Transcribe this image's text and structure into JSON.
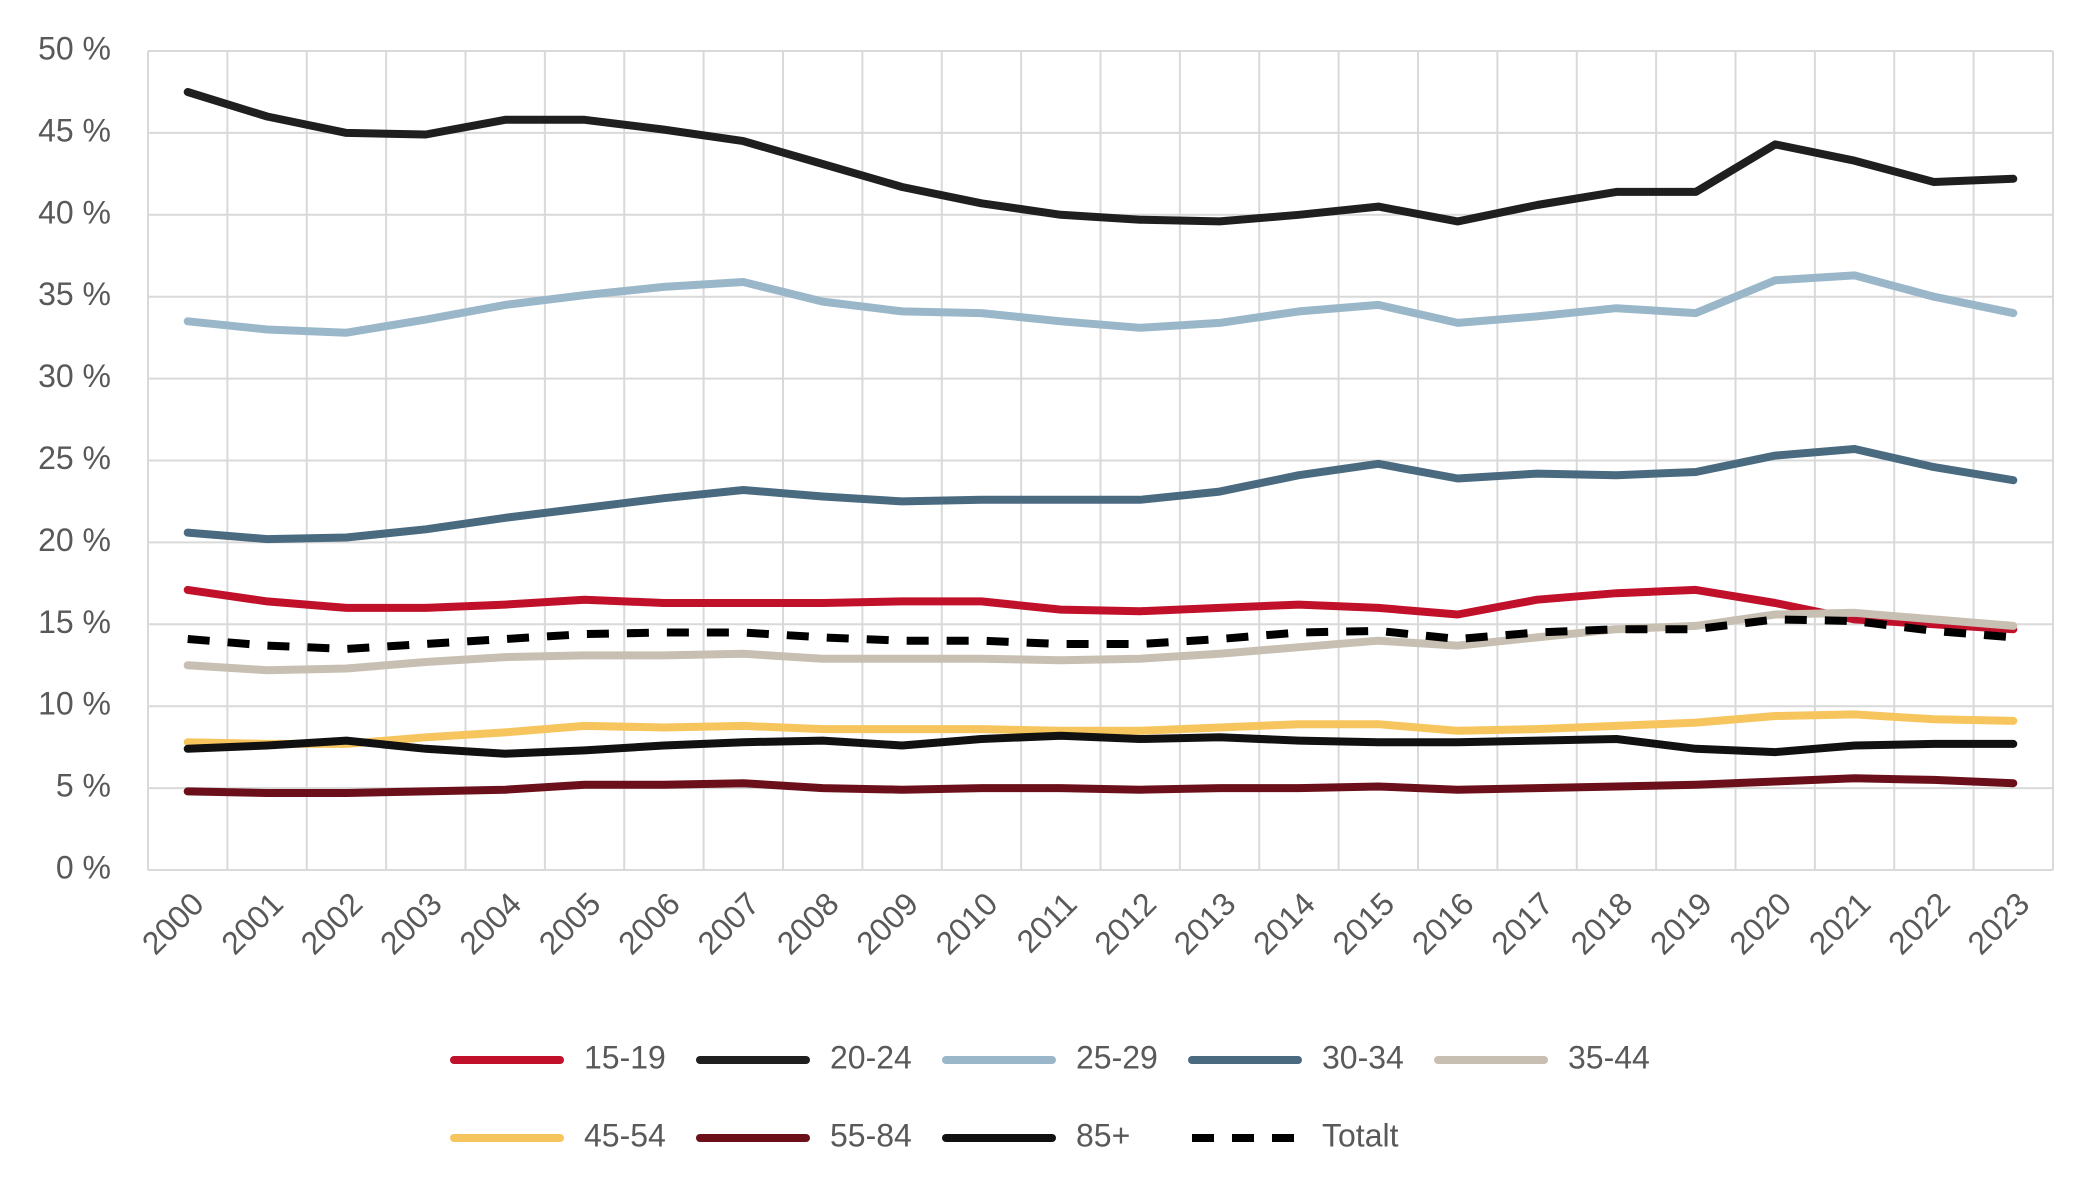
{
  "chart_data": {
    "type": "line",
    "categories": [
      "2000",
      "2001",
      "2002",
      "2003",
      "2004",
      "2005",
      "2006",
      "2007",
      "2008",
      "2009",
      "2010",
      "2011",
      "2012",
      "2013",
      "2014",
      "2015",
      "2016",
      "2017",
      "2018",
      "2019",
      "2020",
      "2021",
      "2022",
      "2023"
    ],
    "ylim": [
      0,
      50
    ],
    "yticks": [
      {
        "value": 0,
        "label": "0 %"
      },
      {
        "value": 5,
        "label": "5 %"
      },
      {
        "value": 10,
        "label": "10 %"
      },
      {
        "value": 15,
        "label": "15 %"
      },
      {
        "value": 20,
        "label": "20 %"
      },
      {
        "value": 25,
        "label": "25 %"
      },
      {
        "value": 30,
        "label": "30 %"
      },
      {
        "value": 35,
        "label": "35 %"
      },
      {
        "value": 40,
        "label": "40 %"
      },
      {
        "value": 45,
        "label": "45 %"
      },
      {
        "value": 50,
        "label": "50 %"
      }
    ],
    "grid": true,
    "legend": "bottom",
    "series": [
      {
        "name": "15-19",
        "color": "#c0102a",
        "values": [
          17.1,
          16.4,
          16.0,
          16.0,
          16.2,
          16.5,
          16.3,
          16.3,
          16.3,
          16.4,
          16.4,
          15.9,
          15.8,
          16.0,
          16.2,
          16.0,
          15.6,
          16.5,
          16.9,
          17.1,
          16.3,
          15.3,
          15.0,
          14.7
        ]
      },
      {
        "name": "20-24",
        "color": "#1f1f1f",
        "values": [
          47.5,
          46.0,
          45.0,
          44.9,
          45.8,
          45.8,
          45.2,
          44.5,
          43.1,
          41.7,
          40.7,
          40.0,
          39.7,
          39.6,
          40.0,
          40.5,
          39.6,
          40.6,
          41.4,
          41.4,
          44.3,
          43.3,
          42.0,
          42.2
        ]
      },
      {
        "name": "25-29",
        "color": "#9ab7c9",
        "values": [
          33.5,
          33.0,
          32.8,
          33.6,
          34.5,
          35.1,
          35.6,
          35.9,
          34.7,
          34.1,
          34.0,
          33.5,
          33.1,
          33.4,
          34.1,
          34.5,
          33.4,
          33.8,
          34.3,
          34.0,
          36.0,
          36.3,
          35.0,
          34.0
        ]
      },
      {
        "name": "30-34",
        "color": "#4a6a80",
        "values": [
          20.6,
          20.2,
          20.3,
          20.8,
          21.5,
          22.1,
          22.7,
          23.2,
          22.8,
          22.5,
          22.6,
          22.6,
          22.6,
          23.1,
          24.1,
          24.8,
          23.9,
          24.2,
          24.1,
          24.3,
          25.3,
          25.7,
          24.6,
          23.8
        ]
      },
      {
        "name": "35-44",
        "color": "#c7bfb2",
        "values": [
          12.5,
          12.2,
          12.3,
          12.7,
          13.0,
          13.1,
          13.1,
          13.2,
          12.9,
          12.9,
          12.9,
          12.8,
          12.9,
          13.2,
          13.6,
          14.0,
          13.7,
          14.2,
          14.7,
          14.9,
          15.6,
          15.7,
          15.3,
          14.9
        ]
      },
      {
        "name": "45-54",
        "color": "#f7c55d",
        "values": [
          7.8,
          7.7,
          7.7,
          8.1,
          8.4,
          8.8,
          8.7,
          8.8,
          8.6,
          8.6,
          8.6,
          8.5,
          8.5,
          8.7,
          8.9,
          8.9,
          8.5,
          8.6,
          8.8,
          9.0,
          9.4,
          9.5,
          9.2,
          9.1
        ]
      },
      {
        "name": "55-84",
        "color": "#6b0f1a",
        "values": [
          4.8,
          4.7,
          4.7,
          4.8,
          4.9,
          5.2,
          5.2,
          5.3,
          5.0,
          4.9,
          5.0,
          5.0,
          4.9,
          5.0,
          5.0,
          5.1,
          4.9,
          5.0,
          5.1,
          5.2,
          5.4,
          5.6,
          5.5,
          5.3
        ]
      },
      {
        "name": "85+",
        "color": "#111111",
        "values": [
          7.4,
          7.6,
          7.9,
          7.4,
          7.1,
          7.3,
          7.6,
          7.8,
          7.9,
          7.6,
          8.0,
          8.2,
          8.0,
          8.1,
          7.9,
          7.8,
          7.8,
          7.9,
          8.0,
          7.4,
          7.2,
          7.6,
          7.7,
          7.7
        ]
      },
      {
        "name": "Totalt",
        "color": "#000000",
        "style": "dashed",
        "values": [
          14.1,
          13.7,
          13.5,
          13.8,
          14.1,
          14.4,
          14.5,
          14.5,
          14.2,
          14.0,
          14.0,
          13.8,
          13.8,
          14.1,
          14.5,
          14.6,
          14.1,
          14.5,
          14.7,
          14.7,
          15.3,
          15.2,
          14.6,
          14.2
        ]
      }
    ]
  }
}
